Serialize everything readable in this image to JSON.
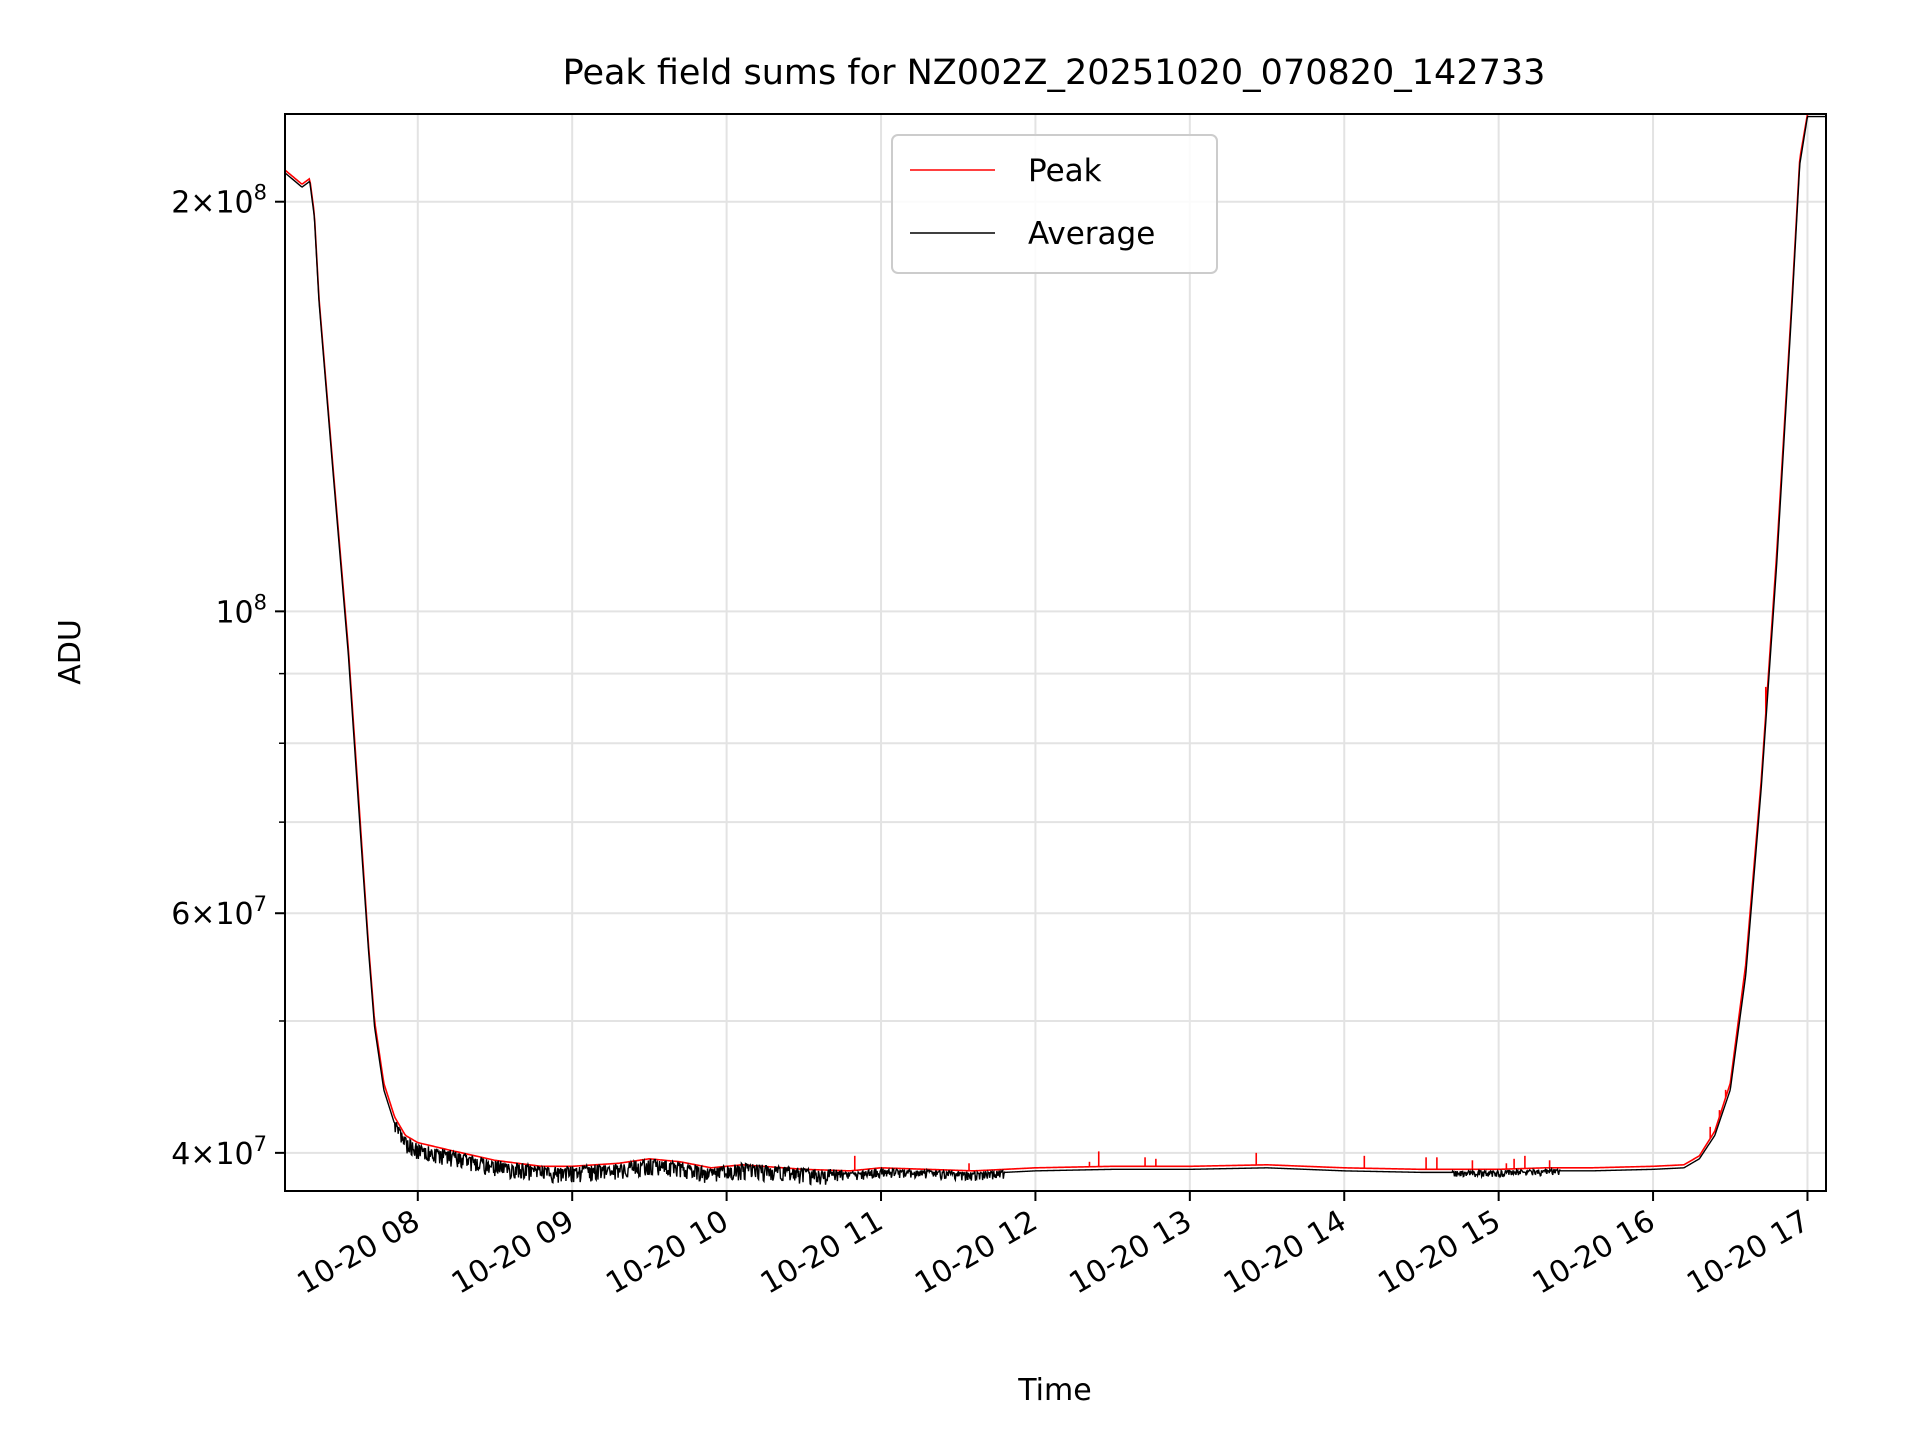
{
  "chart_data": {
    "type": "line",
    "title": "Peak field sums for NZ002Z_20251020_070820_142733",
    "xlabel": "Time",
    "ylabel": "ADU",
    "yscale": "log",
    "xlim": [
      7.14,
      17.12
    ],
    "ylim": [
      37500000,
      232000000
    ],
    "grid": true,
    "legend_position": "upper-center",
    "x_ticks": [
      {
        "value": 8,
        "label": "10-20 08"
      },
      {
        "value": 9,
        "label": "10-20 09"
      },
      {
        "value": 10,
        "label": "10-20 10"
      },
      {
        "value": 11,
        "label": "10-20 11"
      },
      {
        "value": 12,
        "label": "10-20 12"
      },
      {
        "value": 13,
        "label": "10-20 13"
      },
      {
        "value": 14,
        "label": "10-20 14"
      },
      {
        "value": 15,
        "label": "10-20 15"
      },
      {
        "value": 16,
        "label": "10-20 16"
      },
      {
        "value": 17,
        "label": "10-20 17"
      }
    ],
    "y_major_ticks": [
      {
        "value": 40000000,
        "mantissa": "4",
        "exponent": "7"
      },
      {
        "value": 60000000,
        "mantissa": "6",
        "exponent": "7"
      },
      {
        "value": 100000000,
        "mantissa": "",
        "exponent": "8"
      },
      {
        "value": 200000000,
        "mantissa": "2",
        "exponent": "8"
      }
    ],
    "y_minor_ticks": [
      50000000,
      70000000,
      80000000,
      90000000
    ],
    "series": [
      {
        "name": "Peak",
        "color": "#ff0000",
        "x": [
          7.14,
          7.25,
          7.3,
          7.33,
          7.36,
          7.45,
          7.55,
          7.62,
          7.68,
          7.72,
          7.78,
          7.85,
          7.92,
          8.0,
          8.2,
          8.5,
          8.8,
          9.0,
          9.3,
          9.5,
          9.7,
          9.9,
          10.1,
          10.5,
          10.8,
          11.0,
          11.3,
          11.6,
          12.0,
          12.5,
          13.0,
          13.5,
          14.0,
          14.5,
          15.0,
          15.3,
          15.6,
          16.0,
          16.2,
          16.3,
          16.4,
          16.5,
          16.6,
          16.7,
          16.8,
          16.9,
          16.95,
          17.0,
          17.12
        ],
        "y": [
          211000000,
          206000000,
          208000000,
          196000000,
          170000000,
          128000000,
          94000000,
          72000000,
          57000000,
          50000000,
          45000000,
          42500000,
          41200000,
          40700000,
          40200000,
          39500000,
          39100000,
          39100000,
          39300000,
          39600000,
          39400000,
          39000000,
          39200000,
          38900000,
          38800000,
          39000000,
          38900000,
          38800000,
          39000000,
          39100000,
          39100000,
          39200000,
          39000000,
          38900000,
          38900000,
          39000000,
          39000000,
          39100000,
          39200000,
          39800000,
          41500000,
          45000000,
          55000000,
          75000000,
          110000000,
          170000000,
          215000000,
          232000000,
          232000000
        ],
        "spikes": [
          {
            "x": 10.83,
            "y": 39800000
          },
          {
            "x": 11.57,
            "y": 39300000
          },
          {
            "x": 12.35,
            "y": 39400000
          },
          {
            "x": 12.41,
            "y": 40100000
          },
          {
            "x": 12.71,
            "y": 39700000
          },
          {
            "x": 12.78,
            "y": 39600000
          },
          {
            "x": 13.43,
            "y": 40000000
          },
          {
            "x": 14.13,
            "y": 39800000
          },
          {
            "x": 14.53,
            "y": 39700000
          },
          {
            "x": 14.6,
            "y": 39700000
          },
          {
            "x": 14.83,
            "y": 39500000
          },
          {
            "x": 15.05,
            "y": 39300000
          },
          {
            "x": 15.1,
            "y": 39600000
          },
          {
            "x": 15.17,
            "y": 39800000
          },
          {
            "x": 15.33,
            "y": 39500000
          },
          {
            "x": 16.37,
            "y": 41800000
          },
          {
            "x": 16.43,
            "y": 43000000
          },
          {
            "x": 16.47,
            "y": 44500000
          },
          {
            "x": 16.73,
            "y": 88000000
          }
        ]
      },
      {
        "name": "Average",
        "color": "#000000",
        "x": [
          7.14,
          7.25,
          7.3,
          7.33,
          7.36,
          7.45,
          7.55,
          7.62,
          7.68,
          7.72,
          7.78,
          7.85,
          7.92,
          8.0,
          8.2,
          8.5,
          8.8,
          9.0,
          9.3,
          9.5,
          9.7,
          9.9,
          10.1,
          10.5,
          10.8,
          11.0,
          11.3,
          11.6,
          12.0,
          12.5,
          13.0,
          13.5,
          14.0,
          14.5,
          15.0,
          15.3,
          15.6,
          16.0,
          16.2,
          16.3,
          16.4,
          16.5,
          16.6,
          16.7,
          16.8,
          16.9,
          16.95,
          17.0,
          17.12
        ],
        "y": [
          210000000,
          205000000,
          207000000,
          195000000,
          169000000,
          127000000,
          93000000,
          71000000,
          56500000,
          49500000,
          44500000,
          42000000,
          40800000,
          40300000,
          39900000,
          39200000,
          38800000,
          38800000,
          39000000,
          39300000,
          39100000,
          38700000,
          39000000,
          38700000,
          38600000,
          38800000,
          38700000,
          38600000,
          38800000,
          38900000,
          38900000,
          39000000,
          38800000,
          38700000,
          38700000,
          38800000,
          38800000,
          38900000,
          39000000,
          39600000,
          41200000,
          44500000,
          54000000,
          74000000,
          108000000,
          168000000,
          213000000,
          231000000,
          231000000
        ],
        "noise_ranges": [
          {
            "x0": 7.85,
            "x1": 10.75,
            "amplitude_low": 0.02,
            "amplitude_high": 0.008
          },
          {
            "x0": 10.75,
            "x1": 11.8,
            "amplitude_low": 0.012,
            "amplitude_high": 0.004
          },
          {
            "x0": 14.7,
            "x1": 15.4,
            "amplitude_low": 0.008,
            "amplitude_high": 0.003
          }
        ]
      }
    ]
  }
}
